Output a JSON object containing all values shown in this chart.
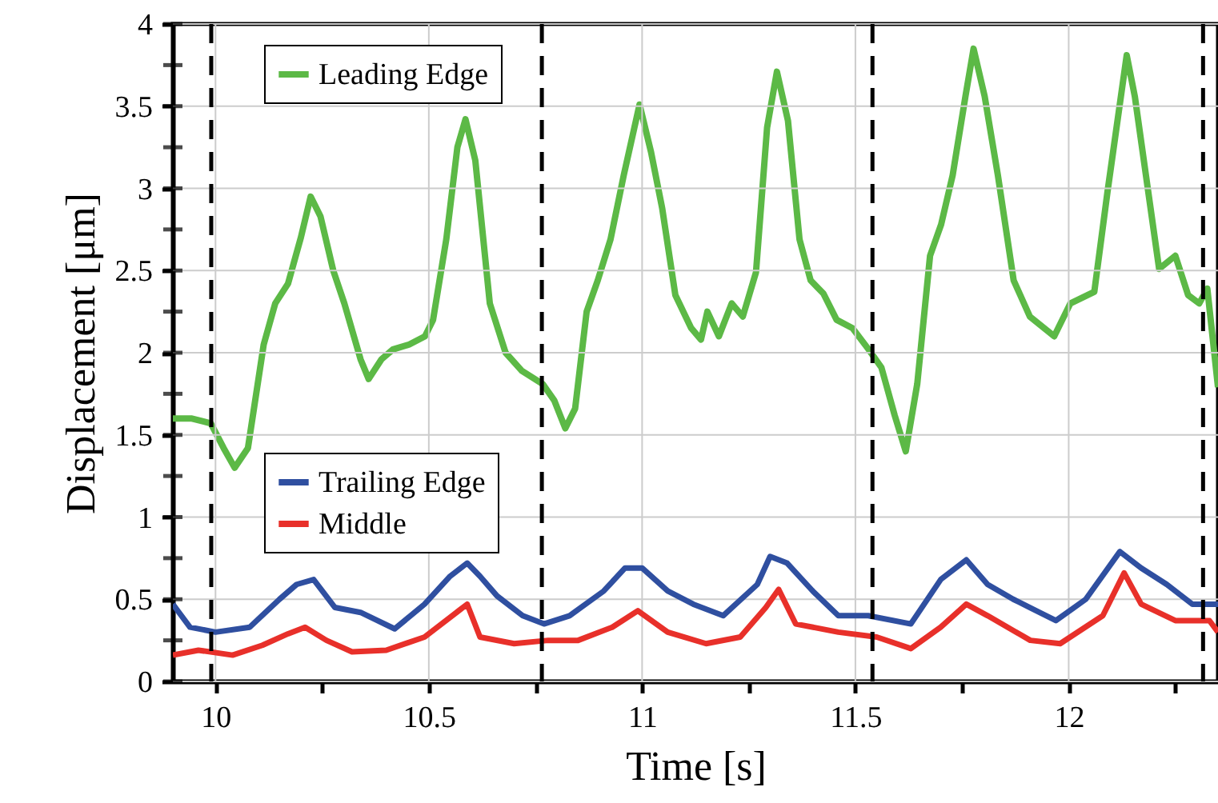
{
  "chart_data": {
    "type": "line",
    "xlabel": "Time [s]",
    "ylabel": "Displacement [μm]",
    "xlim": [
      9.9,
      12.35
    ],
    "ylim": [
      0,
      4
    ],
    "xticks": [
      10,
      {
        "value": 10.25,
        "label": null
      },
      10.5,
      {
        "value": 10.75,
        "label": null
      },
      11,
      {
        "value": 11.25,
        "label": null
      },
      11.5,
      {
        "value": 11.75,
        "label": null
      },
      12,
      {
        "value": 12.25,
        "label": null
      }
    ],
    "yticks": [
      0,
      {
        "value": 0.25,
        "label": null
      },
      0.5,
      {
        "value": 0.75,
        "label": null
      },
      1,
      {
        "value": 1.25,
        "label": null
      },
      1.5,
      {
        "value": 1.75,
        "label": null
      },
      2,
      {
        "value": 2.25,
        "label": null
      },
      2.5,
      {
        "value": 2.75,
        "label": null
      },
      3,
      {
        "value": 3.25,
        "label": null
      },
      3.5,
      {
        "value": 3.75,
        "label": null
      },
      4
    ],
    "grid": true,
    "legend": "top left",
    "line_style": "solid",
    "marker": "none",
    "ref_lines": [
      {
        "axis": "x",
        "value": 9.99,
        "line_style": "dashed",
        "color": "#000000"
      },
      {
        "axis": "x",
        "value": 10.765,
        "line_style": "dashed",
        "color": "#000000"
      },
      {
        "axis": "x",
        "value": 11.54,
        "line_style": "dashed",
        "color": "#000000"
      },
      {
        "axis": "x",
        "value": 12.315,
        "line_style": "dashed",
        "color": "#000000"
      }
    ],
    "series": [
      {
        "name": "Leading Edge",
        "color": "#5cb946",
        "x": [
          9.9,
          9.943,
          9.989,
          10.019,
          10.045,
          10.076,
          10.113,
          10.14,
          10.17,
          10.2,
          10.223,
          10.246,
          10.276,
          10.302,
          10.34,
          10.359,
          10.389,
          10.416,
          10.454,
          10.491,
          10.51,
          10.541,
          10.567,
          10.586,
          10.609,
          10.643,
          10.68,
          10.718,
          10.767,
          10.794,
          10.82,
          10.843,
          10.87,
          10.896,
          10.926,
          10.957,
          10.994,
          11.021,
          11.047,
          11.078,
          11.115,
          11.138,
          11.153,
          11.18,
          11.21,
          11.236,
          11.267,
          11.293,
          11.316,
          11.342,
          11.369,
          11.395,
          11.425,
          11.456,
          11.493,
          11.531,
          11.561,
          11.592,
          11.618,
          11.645,
          11.675,
          11.701,
          11.728,
          11.758,
          11.777,
          11.803,
          11.834,
          11.871,
          11.909,
          11.966,
          12.004,
          12.06,
          12.091,
          12.136,
          12.155,
          12.181,
          12.212,
          12.25,
          12.28,
          12.306,
          12.325,
          12.35
        ],
        "values": [
          1.6,
          1.6,
          1.57,
          1.42,
          1.3,
          1.42,
          2.05,
          2.3,
          2.42,
          2.7,
          2.95,
          2.83,
          2.5,
          2.3,
          1.96,
          1.84,
          1.96,
          2.02,
          2.05,
          2.1,
          2.2,
          2.69,
          3.25,
          3.42,
          3.17,
          2.3,
          2.0,
          1.89,
          1.81,
          1.71,
          1.54,
          1.66,
          2.25,
          2.44,
          2.69,
          3.08,
          3.51,
          3.22,
          2.88,
          2.35,
          2.15,
          2.08,
          2.25,
          2.1,
          2.3,
          2.22,
          2.49,
          3.37,
          3.71,
          3.41,
          2.69,
          2.44,
          2.36,
          2.2,
          2.15,
          2.02,
          1.91,
          1.62,
          1.4,
          1.81,
          2.59,
          2.78,
          3.08,
          3.56,
          3.85,
          3.56,
          3.08,
          2.44,
          2.22,
          2.1,
          2.3,
          2.37,
          2.98,
          3.81,
          3.56,
          3.08,
          2.51,
          2.59,
          2.35,
          2.3,
          2.39,
          1.79
        ]
      },
      {
        "name": "Trailing Edge",
        "color": "#2f4fa0",
        "x": [
          9.9,
          9.94,
          10.0,
          10.08,
          10.15,
          10.19,
          10.23,
          10.28,
          10.34,
          10.42,
          10.49,
          10.55,
          10.59,
          10.62,
          10.66,
          10.72,
          10.77,
          10.83,
          10.91,
          10.96,
          11.0,
          11.06,
          11.12,
          11.19,
          11.27,
          11.3,
          11.34,
          11.4,
          11.46,
          11.53,
          11.63,
          11.7,
          11.76,
          11.81,
          11.87,
          11.97,
          12.04,
          12.12,
          12.17,
          12.23,
          12.29,
          12.35
        ],
        "values": [
          0.47,
          0.33,
          0.3,
          0.33,
          0.5,
          0.59,
          0.62,
          0.45,
          0.42,
          0.32,
          0.47,
          0.64,
          0.72,
          0.64,
          0.52,
          0.4,
          0.35,
          0.4,
          0.55,
          0.69,
          0.69,
          0.55,
          0.47,
          0.4,
          0.59,
          0.76,
          0.72,
          0.55,
          0.4,
          0.4,
          0.35,
          0.62,
          0.74,
          0.59,
          0.5,
          0.37,
          0.5,
          0.79,
          0.69,
          0.59,
          0.47,
          0.47
        ]
      },
      {
        "name": "Middle",
        "color": "#e8302a",
        "x": [
          9.9,
          9.96,
          10.04,
          10.11,
          10.17,
          10.21,
          10.26,
          10.32,
          10.4,
          10.49,
          10.57,
          10.59,
          10.62,
          10.7,
          10.78,
          10.85,
          10.93,
          10.99,
          11.06,
          11.15,
          11.23,
          11.29,
          11.32,
          11.36,
          11.46,
          11.55,
          11.63,
          11.7,
          11.76,
          11.81,
          11.91,
          11.98,
          12.08,
          12.13,
          12.17,
          12.25,
          12.33,
          12.35
        ],
        "values": [
          0.16,
          0.19,
          0.16,
          0.22,
          0.29,
          0.33,
          0.25,
          0.18,
          0.19,
          0.27,
          0.43,
          0.47,
          0.27,
          0.23,
          0.25,
          0.25,
          0.33,
          0.43,
          0.3,
          0.23,
          0.27,
          0.45,
          0.56,
          0.35,
          0.3,
          0.27,
          0.2,
          0.33,
          0.47,
          0.4,
          0.25,
          0.23,
          0.4,
          0.66,
          0.47,
          0.37,
          0.37,
          0.3
        ]
      }
    ]
  }
}
